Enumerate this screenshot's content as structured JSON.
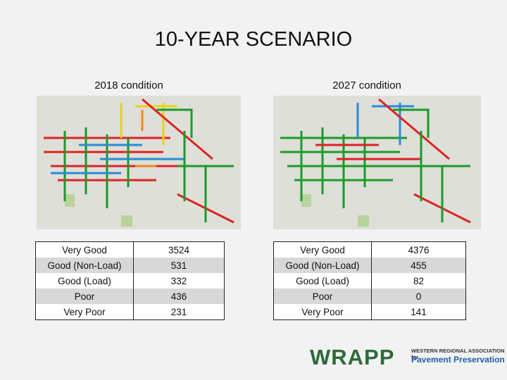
{
  "title": "10-YEAR SCENARIO",
  "panels": [
    {
      "caption": "2018 condition",
      "table": {
        "rows": [
          [
            "Very Good",
            3524
          ],
          [
            "Good (Non-Load)",
            531
          ],
          [
            "Good (Load)",
            332
          ],
          [
            "Poor",
            436
          ],
          [
            "Very Poor",
            231
          ]
        ]
      }
    },
    {
      "caption": "2027 condition",
      "table": {
        "rows": [
          [
            "Very Good",
            4376
          ],
          [
            "Good (Non-Load)",
            455
          ],
          [
            "Good (Load)",
            82
          ],
          [
            "Poor",
            0
          ],
          [
            "Very Poor",
            141
          ]
        ]
      }
    }
  ],
  "logo": {
    "name": "WRAPP",
    "org_line1": "WESTERN REGIONAL ASSOCIATION for",
    "org_line2": "Pavement Preservation"
  }
}
